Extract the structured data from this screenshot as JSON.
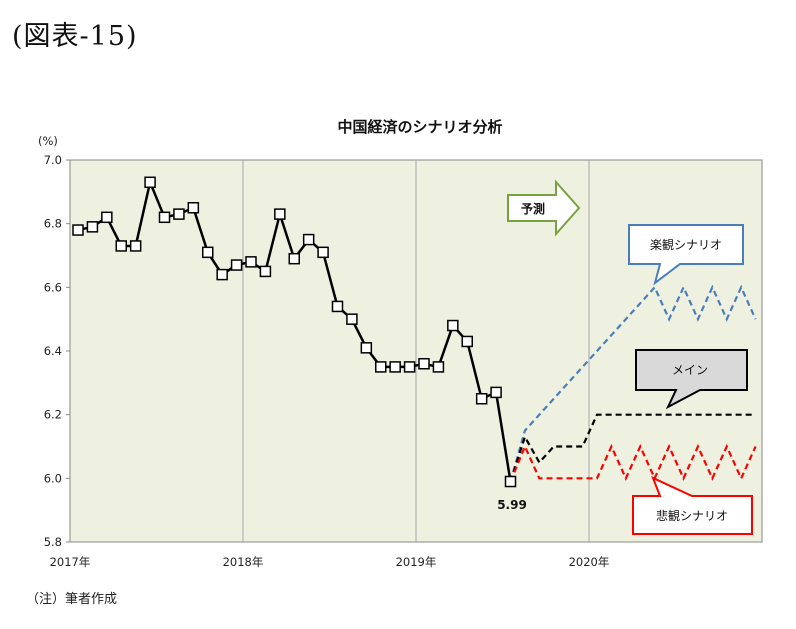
{
  "figure_label": "(図表-15)",
  "note": "（注）筆者作成",
  "colors": {
    "plot_bg": "#eef0e0",
    "actual": "#000000",
    "optimistic": "#4a7ebb",
    "main": "#000000",
    "pessimistic": "#ff0000",
    "forecast_arrow": "#77a33e"
  },
  "chart_data": {
    "type": "line",
    "title": "中国経済のシナリオ分析",
    "ylabel": "(%)",
    "ylim": [
      5.8,
      7.0
    ],
    "yticks": [
      "7.0",
      "6.8",
      "6.6",
      "6.4",
      "6.2",
      "6.0",
      "5.8"
    ],
    "x_ticks": [
      "2017年",
      "2018年",
      "2019年",
      "2020年"
    ],
    "grid": "vertical lines at year boundaries",
    "forecast_label": "予測",
    "end_label": "5.99",
    "series": [
      {
        "role": "actual",
        "markers": "open-square",
        "x": [
          "2017-01",
          "2017-02",
          "2017-03",
          "2017-04",
          "2017-05",
          "2017-06",
          "2017-07",
          "2017-08",
          "2017-09",
          "2017-10",
          "2017-11",
          "2017-12",
          "2018-01",
          "2018-02",
          "2018-03",
          "2018-04",
          "2018-05",
          "2018-06",
          "2018-07",
          "2018-08",
          "2018-09",
          "2018-10",
          "2018-11",
          "2018-12",
          "2019-01",
          "2019-02",
          "2019-03",
          "2019-04",
          "2019-05",
          "2019-06",
          "2019-07"
        ],
        "values": [
          6.78,
          6.79,
          6.82,
          6.73,
          6.73,
          6.93,
          6.82,
          6.83,
          6.85,
          6.71,
          6.64,
          6.67,
          6.68,
          6.65,
          6.83,
          6.69,
          6.75,
          6.71,
          6.54,
          6.5,
          6.41,
          6.35,
          6.35,
          6.35,
          6.36,
          6.35,
          6.48,
          6.43,
          6.25,
          6.27,
          5.99
        ]
      },
      {
        "name": "楽観シナリオ",
        "style": "dashed",
        "x": [
          "2019-07",
          "2019-08",
          "2020-05",
          "2020-06",
          "2020-07",
          "2020-08",
          "2020-09",
          "2020-10",
          "2020-11",
          "2020-12"
        ],
        "values": [
          5.99,
          6.15,
          6.6,
          6.5,
          6.6,
          6.5,
          6.6,
          6.5,
          6.6,
          6.5
        ]
      },
      {
        "name": "メイン",
        "style": "dashed",
        "x": [
          "2019-07",
          "2019-08",
          "2019-09",
          "2019-10",
          "2019-11",
          "2019-12",
          "2020-01",
          "2020-12"
        ],
        "values": [
          5.99,
          6.13,
          6.05,
          6.1,
          6.1,
          6.1,
          6.2,
          6.2
        ]
      },
      {
        "name": "悲観シナリオ",
        "style": "dashed",
        "x": [
          "2019-07",
          "2019-08",
          "2019-09",
          "2019-10",
          "2019-11",
          "2019-12",
          "2020-01",
          "2020-02",
          "2020-03",
          "2020-04",
          "2020-05",
          "2020-06",
          "2020-07",
          "2020-08",
          "2020-09",
          "2020-10",
          "2020-11",
          "2020-12"
        ],
        "values": [
          5.99,
          6.1,
          6.0,
          6.0,
          6.0,
          6.0,
          6.0,
          6.1,
          6.0,
          6.1,
          6.0,
          6.1,
          6.0,
          6.1,
          6.0,
          6.1,
          6.0,
          6.1
        ]
      }
    ]
  }
}
